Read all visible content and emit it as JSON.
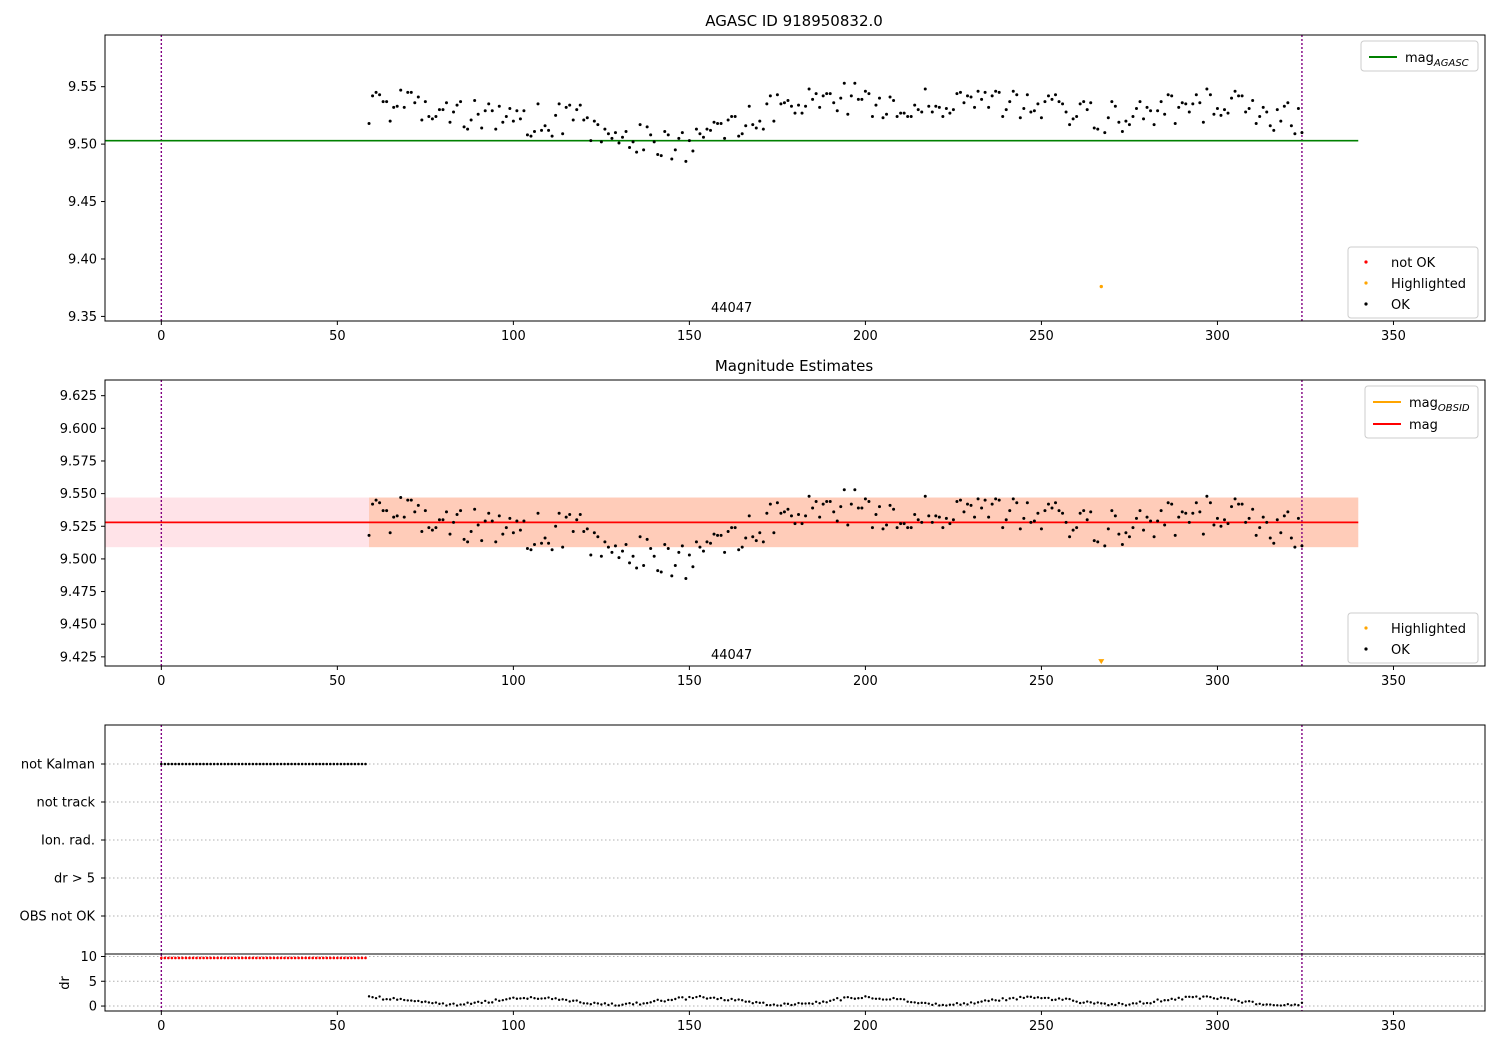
{
  "chart_data": [
    {
      "type": "scatter",
      "title": "AGASC ID 918950832.0",
      "xlim": [
        -16,
        376
      ],
      "ylim": [
        9.346,
        9.595
      ],
      "xticks": [
        0,
        50,
        100,
        150,
        200,
        250,
        300,
        350
      ],
      "yticks": [
        9.35,
        9.4,
        9.45,
        9.5,
        9.55
      ],
      "ytick_labels": [
        "9.35",
        "9.40",
        "9.45",
        "9.50",
        "9.55"
      ],
      "vlines": [
        0,
        324
      ],
      "annotation": {
        "text": "44047",
        "x": 162,
        "y": 9.358
      },
      "lines": [
        {
          "name": "mag_AGASC",
          "label_main": "mag",
          "label_sub": "AGASC",
          "y": 9.503,
          "x_range": [
            -16,
            340
          ],
          "color": "#008000"
        }
      ],
      "series": [
        {
          "name": "not OK",
          "color": "#ff0000",
          "points": []
        },
        {
          "name": "Highlighted",
          "color": "#ffa500",
          "points": [
            [
              267,
              9.376
            ]
          ]
        },
        {
          "name": "OK",
          "color": "#000000",
          "points": []
        }
      ],
      "legend_lines_position": "top-right",
      "legend_points_position": "bottom-right"
    },
    {
      "type": "scatter",
      "title": "Magnitude Estimates",
      "xlim": [
        -16,
        376
      ],
      "ylim": [
        9.418,
        9.637
      ],
      "xticks": [
        0,
        50,
        100,
        150,
        200,
        250,
        300,
        350
      ],
      "yticks": [
        9.425,
        9.45,
        9.475,
        9.5,
        9.525,
        9.55,
        9.575,
        9.6,
        9.625
      ],
      "ytick_labels": [
        "9.425",
        "9.450",
        "9.475",
        "9.500",
        "9.525",
        "9.550",
        "9.575",
        "9.600",
        "9.625"
      ],
      "vlines": [
        0,
        324
      ],
      "annotation": {
        "text": "44047",
        "x": 162,
        "y": 9.427
      },
      "bands": [
        {
          "y0": 9.509,
          "y1": 9.547,
          "x_range": [
            -16,
            340
          ],
          "color": "#ffc0cb",
          "opacity": 0.45
        },
        {
          "y0": 9.509,
          "y1": 9.547,
          "x_range": [
            59,
            340
          ],
          "color": "#ffa060",
          "opacity": 0.35
        }
      ],
      "lines": [
        {
          "name": "mag_OBSID",
          "label_main": "mag",
          "label_sub": "OBSID",
          "y": null,
          "color": "#ffa500"
        },
        {
          "name": "mag",
          "label_main": "mag",
          "label_sub": "",
          "y": 9.528,
          "x_range": [
            -16,
            340
          ],
          "color": "#ff0000"
        }
      ],
      "series": [
        {
          "name": "Highlighted",
          "color": "#ffa500",
          "points": [
            [
              267,
              9.421
            ]
          ]
        },
        {
          "name": "OK",
          "color": "#000000",
          "points": []
        }
      ],
      "legend_lines_position": "top-right",
      "legend_points_position": "bottom-right"
    },
    {
      "type": "scatter",
      "xlim": [
        -16,
        376
      ],
      "categories": [
        "not Kalman",
        "not track",
        "Ion. rad.",
        "dr > 5",
        "OBS not OK"
      ],
      "vlines": [
        0,
        324
      ],
      "flag_series": {
        "category": "not Kalman",
        "x_range": [
          0,
          58
        ],
        "step": 1,
        "color": "#000000"
      }
    },
    {
      "type": "scatter",
      "xlim": [
        -16,
        376
      ],
      "ylim": [
        -1,
        10.5
      ],
      "ylabel": "dr",
      "xticks": [
        0,
        50,
        100,
        150,
        200,
        250,
        300,
        350
      ],
      "yticks": [
        0,
        5,
        10
      ],
      "ytick_labels": [
        "0",
        "5",
        "10"
      ],
      "vlines": [
        0,
        324
      ],
      "series": [
        {
          "name": "dr not OK",
          "color": "#ff0000",
          "x_range": [
            0,
            58
          ],
          "y": 9.7
        },
        {
          "name": "dr OK",
          "color": "#000000",
          "points": []
        }
      ]
    }
  ],
  "colors": {
    "vline": "#800080",
    "ok": "#000000",
    "not_ok": "#ff0000",
    "highlighted": "#ffa500",
    "mag_agasc": "#008000",
    "mag": "#ff0000",
    "mag_obsid": "#ffa500"
  }
}
